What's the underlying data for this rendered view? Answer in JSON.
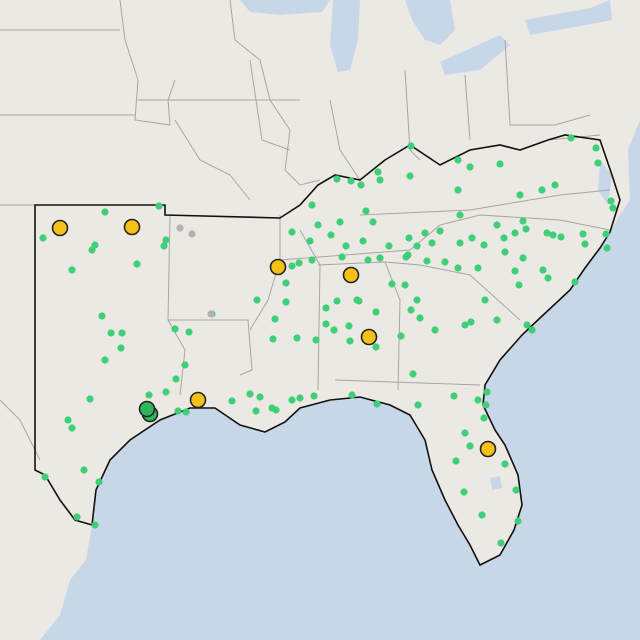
{
  "map": {
    "colors": {
      "land": "#ece9e4",
      "water": "#c7d7e8",
      "state_border": "#a9a6a2",
      "region_outline": "#111111",
      "site_small": "#3ecf78",
      "site_small_inactive": "#b2b2b2",
      "site_large_yellow": "#f6c116",
      "site_large_green": "#2fb65c",
      "marker_stroke": "#222222"
    },
    "icons": {
      "small_site": "dot",
      "large_site": "ringed-circle"
    }
  }
}
